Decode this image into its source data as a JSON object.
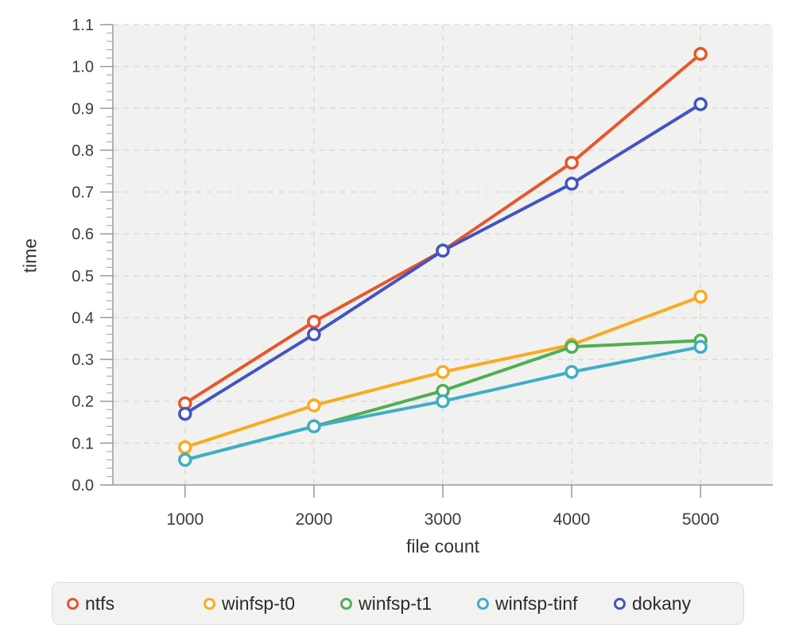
{
  "colors": {
    "plot_bg": "#f1f1f0",
    "grid": "#dbdbdb",
    "axis": "#999999",
    "minor_tick": "#aeaeae",
    "tick_label": "#3b3b3b",
    "legend_bg": "#f2f2f1",
    "legend_border": "#dcdcdc"
  },
  "chart_data": {
    "type": "line",
    "title": "",
    "xlabel": "file count",
    "ylabel": "time",
    "x": [
      1000,
      2000,
      3000,
      4000,
      5000
    ],
    "x_tick_labels": [
      "1000",
      "2000",
      "3000",
      "4000",
      "5000"
    ],
    "y_ticks": [
      0.0,
      0.1,
      0.2,
      0.3,
      0.4,
      0.5,
      0.6,
      0.7,
      0.8,
      0.9,
      1.0,
      1.1
    ],
    "y_tick_labels": [
      "0.0",
      "0.1",
      "0.2",
      "0.3",
      "0.4",
      "0.5",
      "0.6",
      "0.7",
      "0.8",
      "0.9",
      "1.0",
      "1.1"
    ],
    "x_range": [
      440,
      5560
    ],
    "y_range": [
      0,
      1.1
    ],
    "y_minor_step": 0.02,
    "grid": true,
    "legend_position": "bottom",
    "marker": "open-circle",
    "series": [
      {
        "name": "ntfs",
        "color": "#e8562b",
        "values": [
          0.195,
          0.39,
          0.56,
          0.77,
          1.03
        ]
      },
      {
        "name": "winfsp-t0",
        "color": "#faaa1e",
        "values": [
          0.09,
          0.19,
          0.27,
          0.335,
          0.45
        ]
      },
      {
        "name": "winfsp-t1",
        "color": "#4faf53",
        "values": [
          0.06,
          0.14,
          0.225,
          0.33,
          0.345
        ]
      },
      {
        "name": "winfsp-tinf",
        "color": "#40adc7",
        "values": [
          0.06,
          0.14,
          0.2,
          0.27,
          0.33
        ]
      },
      {
        "name": "dokany",
        "color": "#4253c4",
        "values": [
          0.17,
          0.36,
          0.56,
          0.72,
          0.91
        ]
      }
    ]
  }
}
